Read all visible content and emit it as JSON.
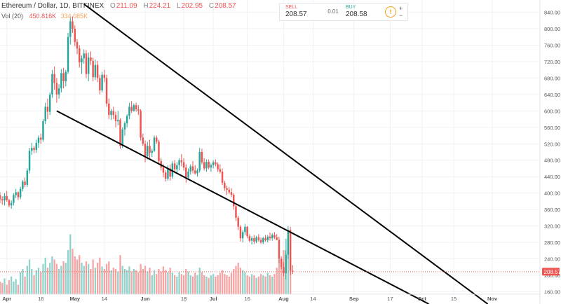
{
  "header": {
    "symbol": "Ethereum / Dollar, 1D, BITFINEX",
    "o_label": "O",
    "o_value": "211.09",
    "h_label": "H",
    "h_value": "224.21",
    "l_label": "L",
    "l_value": "202.95",
    "c_label": "C",
    "c_value": "208.57",
    "vol_label": "Vol (20)",
    "vol_value": "450.816K",
    "vol_ma": "334.085K"
  },
  "trade_panel": {
    "sell_label": "SELL",
    "sell_price": "208.57",
    "spread": "0.01",
    "buy_label": "BUY",
    "buy_price": "208.58",
    "info_icon": "!",
    "plus": "+",
    "minus": "−"
  },
  "colors": {
    "up": "#26a69a",
    "down": "#ef5350",
    "vol_up": "#8fd3cb",
    "vol_down": "#f5a3a3",
    "last_price": "#ef5350",
    "trendline": "#000000"
  },
  "chart_data": {
    "type": "candlestick",
    "title": "Ethereum / Dollar, 1D, BITFINEX",
    "y_ticks": [
      160,
      200,
      240,
      280,
      320,
      360,
      400,
      440,
      480,
      520,
      560,
      600,
      640,
      680,
      720,
      760,
      800,
      840
    ],
    "y_range": [
      130,
      870
    ],
    "last_price": 208.57,
    "last_price_label": "208.57",
    "x_range": [
      "2018-03-29",
      "2018-11-22"
    ],
    "x_ticks": [
      {
        "label": "Apr",
        "date": "2018-04-01"
      },
      {
        "label": "16",
        "date": "2018-04-16"
      },
      {
        "label": "May",
        "date": "2018-05-01"
      },
      {
        "label": "14",
        "date": "2018-05-14"
      },
      {
        "label": "Jun",
        "date": "2018-06-01"
      },
      {
        "label": "18",
        "date": "2018-06-18"
      },
      {
        "label": "Jul",
        "date": "2018-07-01"
      },
      {
        "label": "16",
        "date": "2018-07-16"
      },
      {
        "label": "Aug",
        "date": "2018-08-01"
      },
      {
        "label": "14",
        "date": "2018-08-14"
      },
      {
        "label": "Sep",
        "date": "2018-09-01"
      },
      {
        "label": "17",
        "date": "2018-09-17"
      },
      {
        "label": "Oct",
        "date": "2018-10-01"
      },
      {
        "label": "15",
        "date": "2018-10-15"
      },
      {
        "label": "Nov",
        "date": "2018-11-01"
      }
    ],
    "ohlc_start_date": "2018-03-29",
    "ohlc": [
      [
        395,
        402,
        376,
        385
      ],
      [
        385,
        392,
        372,
        382
      ],
      [
        382,
        400,
        370,
        393
      ],
      [
        393,
        405,
        379,
        383
      ],
      [
        383,
        386,
        365,
        370
      ],
      [
        370,
        382,
        362,
        376
      ],
      [
        376,
        400,
        370,
        395
      ],
      [
        395,
        410,
        388,
        402
      ],
      [
        402,
        404,
        383,
        390
      ],
      [
        390,
        415,
        385,
        410
      ],
      [
        410,
        432,
        404,
        428
      ],
      [
        428,
        438,
        414,
        420
      ],
      [
        420,
        460,
        415,
        455
      ],
      [
        455,
        510,
        448,
        503
      ],
      [
        503,
        522,
        493,
        510
      ],
      [
        510,
        515,
        497,
        505
      ],
      [
        505,
        530,
        498,
        522
      ],
      [
        522,
        540,
        510,
        535
      ],
      [
        535,
        545,
        520,
        530
      ],
      [
        530,
        580,
        525,
        575
      ],
      [
        575,
        620,
        568,
        610
      ],
      [
        610,
        630,
        580,
        598
      ],
      [
        598,
        645,
        590,
        640
      ],
      [
        640,
        700,
        632,
        690
      ],
      [
        690,
        708,
        652,
        668
      ],
      [
        668,
        680,
        620,
        640
      ],
      [
        640,
        665,
        630,
        655
      ],
      [
        655,
        702,
        645,
        692
      ],
      [
        692,
        705,
        655,
        672
      ],
      [
        672,
        700,
        660,
        695
      ],
      [
        695,
        790,
        690,
        780
      ],
      [
        780,
        830,
        762,
        818
      ],
      [
        818,
        830,
        790,
        800
      ],
      [
        800,
        808,
        758,
        768
      ],
      [
        768,
        775,
        738,
        752
      ],
      [
        752,
        760,
        705,
        718
      ],
      [
        718,
        735,
        690,
        728
      ],
      [
        728,
        750,
        715,
        740
      ],
      [
        740,
        748,
        680,
        690
      ],
      [
        690,
        742,
        672,
        730
      ],
      [
        730,
        745,
        712,
        722
      ],
      [
        722,
        730,
        672,
        682
      ],
      [
        682,
        725,
        675,
        712
      ],
      [
        712,
        722,
        670,
        680
      ],
      [
        680,
        688,
        640,
        650
      ],
      [
        650,
        695,
        645,
        688
      ],
      [
        688,
        700,
        670,
        680
      ],
      [
        680,
        688,
        610,
        618
      ],
      [
        618,
        630,
        580,
        590
      ],
      [
        590,
        605,
        578,
        600
      ],
      [
        600,
        610,
        580,
        590
      ],
      [
        590,
        598,
        560,
        575
      ],
      [
        575,
        600,
        565,
        578
      ],
      [
        578,
        582,
        508,
        515
      ],
      [
        515,
        560,
        510,
        555
      ],
      [
        555,
        575,
        540,
        570
      ],
      [
        570,
        592,
        560,
        588
      ],
      [
        588,
        620,
        580,
        610
      ],
      [
        610,
        624,
        595,
        600
      ],
      [
        600,
        618,
        598,
        614
      ],
      [
        614,
        620,
        598,
        604
      ],
      [
        604,
        614,
        590,
        600
      ],
      [
        600,
        604,
        528,
        535
      ],
      [
        535,
        545,
        515,
        520
      ],
      [
        520,
        528,
        475,
        490
      ],
      [
        490,
        525,
        482,
        515
      ],
      [
        515,
        530,
        485,
        498
      ],
      [
        498,
        508,
        488,
        503
      ],
      [
        503,
        540,
        500,
        535
      ],
      [
        535,
        540,
        520,
        525
      ],
      [
        525,
        530,
        470,
        478
      ],
      [
        478,
        485,
        455,
        462
      ],
      [
        462,
        470,
        438,
        450
      ],
      [
        450,
        455,
        428,
        435
      ],
      [
        435,
        468,
        430,
        460
      ],
      [
        460,
        470,
        430,
        440
      ],
      [
        440,
        478,
        435,
        472
      ],
      [
        472,
        480,
        450,
        458
      ],
      [
        458,
        475,
        450,
        468
      ],
      [
        468,
        485,
        455,
        480
      ],
      [
        480,
        495,
        465,
        475
      ],
      [
        475,
        485,
        455,
        462
      ],
      [
        462,
        470,
        425,
        438
      ],
      [
        438,
        460,
        432,
        452
      ],
      [
        452,
        470,
        445,
        465
      ],
      [
        465,
        478,
        448,
        455
      ],
      [
        455,
        468,
        445,
        448
      ],
      [
        448,
        460,
        440,
        455
      ],
      [
        455,
        510,
        450,
        500
      ],
      [
        500,
        508,
        470,
        475
      ],
      [
        475,
        485,
        455,
        460
      ],
      [
        460,
        482,
        452,
        476
      ],
      [
        476,
        482,
        458,
        462
      ],
      [
        462,
        472,
        452,
        468
      ],
      [
        468,
        480,
        460,
        475
      ],
      [
        475,
        482,
        465,
        470
      ],
      [
        470,
        475,
        452,
        458
      ],
      [
        458,
        470,
        448,
        452
      ],
      [
        452,
        460,
        420,
        425
      ],
      [
        425,
        430,
        405,
        412
      ],
      [
        412,
        418,
        395,
        408
      ],
      [
        408,
        415,
        398,
        402
      ],
      [
        402,
        412,
        390,
        396
      ],
      [
        396,
        400,
        360,
        368
      ],
      [
        368,
        372,
        332,
        340
      ],
      [
        340,
        345,
        310,
        318
      ],
      [
        318,
        322,
        282,
        290
      ],
      [
        290,
        310,
        280,
        305
      ],
      [
        305,
        325,
        298,
        318
      ],
      [
        318,
        320,
        290,
        295
      ],
      [
        295,
        300,
        280,
        284
      ],
      [
        284,
        295,
        275,
        290
      ],
      [
        290,
        298,
        276,
        282
      ],
      [
        282,
        296,
        278,
        292
      ],
      [
        292,
        300,
        282,
        286
      ],
      [
        286,
        292,
        276,
        280
      ],
      [
        280,
        294,
        276,
        290
      ],
      [
        290,
        298,
        282,
        285
      ],
      [
        285,
        298,
        280,
        294
      ],
      [
        294,
        304,
        284,
        290
      ],
      [
        290,
        302,
        284,
        298
      ],
      [
        298,
        305,
        288,
        292
      ],
      [
        292,
        300,
        285,
        286
      ],
      [
        286,
        294,
        230,
        240
      ],
      [
        240,
        246,
        215,
        220
      ],
      [
        220,
        232,
        198,
        205
      ],
      [
        205,
        260,
        190,
        250
      ],
      [
        250,
        320,
        240,
        310
      ],
      [
        310,
        318,
        200,
        211
      ],
      [
        211,
        224.21,
        202.95,
        208.57
      ]
    ],
    "volume_scale_max": 100,
    "volumes": [
      20,
      18,
      25,
      15,
      22,
      28,
      20,
      24,
      15,
      35,
      40,
      28,
      45,
      55,
      40,
      30,
      38,
      42,
      35,
      48,
      58,
      42,
      50,
      60,
      55,
      48,
      40,
      45,
      52,
      50,
      70,
      95,
      72,
      60,
      55,
      62,
      50,
      45,
      52,
      48,
      40,
      55,
      42,
      50,
      58,
      44,
      40,
      48,
      52,
      38,
      42,
      40,
      36,
      62,
      45,
      40,
      38,
      44,
      36,
      40,
      38,
      35,
      48,
      40,
      45,
      36,
      42,
      30,
      38,
      32,
      40,
      36,
      44,
      38,
      35,
      42,
      34,
      30,
      28,
      35,
      32,
      30,
      40,
      36,
      30,
      28,
      34,
      30,
      42,
      35,
      30,
      28,
      26,
      30,
      32,
      28,
      30,
      34,
      38,
      32,
      30,
      28,
      34,
      40,
      45,
      50,
      42,
      38,
      35,
      30,
      28,
      32,
      30,
      26,
      28,
      32,
      30,
      28,
      34,
      30,
      28,
      32,
      42,
      55,
      50,
      70,
      88,
      80,
      60
    ],
    "trendlines": [
      {
        "name": "upper",
        "from": {
          "date": "2018-05-05",
          "price": 860
        },
        "to": {
          "date": "2018-10-30",
          "price": 130
        }
      },
      {
        "name": "lower",
        "from": {
          "date": "2018-04-23",
          "price": 600
        },
        "to": {
          "date": "2018-10-04",
          "price": 130
        }
      }
    ]
  }
}
